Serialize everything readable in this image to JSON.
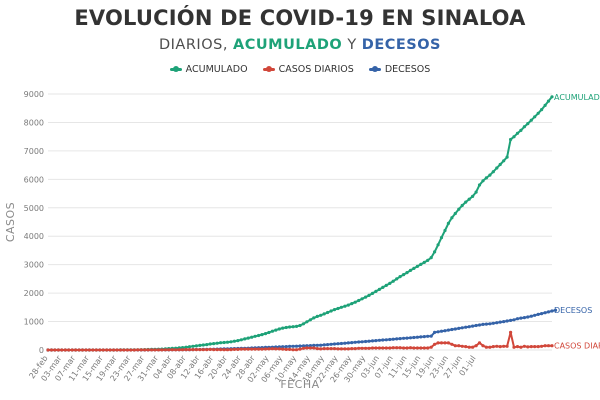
{
  "colors": {
    "acumulado": "#1ea278",
    "diarios": "#d1473a",
    "decesos": "#3563a8",
    "title": "#333333",
    "grid": "#e6e6e6"
  },
  "header": {
    "title": "EVOLUCIÓN DE COVID-19 EN SINALOA",
    "subtitle_prefix": "DIARIOS, ",
    "subtitle_acumulado": "ACUMULADO",
    "subtitle_join": " Y ",
    "subtitle_decesos": "DECESOS"
  },
  "legend": {
    "acumulado": "ACUMULADO",
    "diarios": "CASOS DIARIOS",
    "decesos": "DECESOS"
  },
  "chart_data": {
    "type": "line",
    "title": "EVOLUCIÓN DE COVID-19 EN SINALOA",
    "subtitle": "DIARIOS, ACUMULADO Y DECESOS",
    "xlabel": "FECHA",
    "ylabel": "CASOS",
    "ylim": [
      0,
      9000
    ],
    "yticks": [
      0,
      1000,
      2000,
      3000,
      4000,
      5000,
      6000,
      7000,
      8000,
      9000
    ],
    "grid": true,
    "legend_position": "top",
    "x_tick_labels": [
      "28-feb",
      "03-mar",
      "07-mar",
      "11-mar",
      "15-mar",
      "19-mar",
      "23-mar",
      "27-mar",
      "31-mar",
      "04-abr",
      "08-abr",
      "12-abr",
      "16-abr",
      "20-abr",
      "24-abr",
      "28-abr",
      "02-may",
      "06-may",
      "10-may",
      "14-may",
      "18-may",
      "22-may",
      "26-may",
      "30-may",
      "03-jun",
      "07-jun",
      "11-jun",
      "15-jun",
      "19-jun",
      "23-jun",
      "27-jun",
      "01-jul"
    ],
    "x_start": "28-feb",
    "x_end": "05-jul",
    "end_labels": {
      "acumulado": "ACUMULADO",
      "decesos": "DECESOS",
      "diarios": "CASOS DIARIOS"
    },
    "series": [
      {
        "name": "ACUMULADO",
        "values": [
          0,
          0,
          0,
          0,
          0,
          0,
          0,
          0,
          0,
          0,
          0,
          0,
          0,
          0,
          0,
          0,
          0,
          0,
          0,
          1,
          1,
          2,
          3,
          4,
          5,
          6,
          8,
          10,
          13,
          16,
          20,
          24,
          28,
          33,
          40,
          48,
          57,
          65,
          75,
          85,
          100,
          115,
          130,
          145,
          160,
          175,
          190,
          210,
          225,
          240,
          255,
          265,
          275,
          290,
          310,
          330,
          360,
          390,
          420,
          450,
          480,
          510,
          540,
          575,
          615,
          660,
          700,
          740,
          770,
          790,
          810,
          820,
          830,
          860,
          920,
          990,
          1060,
          1130,
          1180,
          1220,
          1270,
          1320,
          1370,
          1420,
          1460,
          1500,
          1540,
          1580,
          1630,
          1680,
          1740,
          1800,
          1860,
          1920,
          1990,
          2060,
          2130,
          2200,
          2270,
          2340,
          2420,
          2500,
          2580,
          2650,
          2720,
          2800,
          2870,
          2940,
          3010,
          3080,
          3150,
          3250,
          3450,
          3700,
          3950,
          4200,
          4450,
          4650,
          4800,
          4950,
          5080,
          5200,
          5300,
          5400,
          5550,
          5800,
          5950,
          6050,
          6150,
          6270,
          6400,
          6520,
          6650,
          6780,
          7400,
          7500,
          7620,
          7720,
          7850,
          7960,
          8080,
          8200,
          8320,
          8450,
          8600,
          8750,
          8900
        ],
        "end_value": 8900
      },
      {
        "name": "CASOS DIARIOS",
        "values": [
          0,
          0,
          0,
          0,
          0,
          0,
          0,
          0,
          0,
          0,
          0,
          0,
          0,
          0,
          0,
          0,
          0,
          0,
          0,
          1,
          0,
          1,
          1,
          1,
          1,
          1,
          2,
          2,
          3,
          3,
          4,
          4,
          4,
          5,
          7,
          8,
          9,
          8,
          10,
          10,
          15,
          15,
          15,
          15,
          15,
          15,
          15,
          20,
          15,
          15,
          15,
          10,
          10,
          15,
          20,
          20,
          30,
          30,
          30,
          30,
          30,
          30,
          30,
          35,
          40,
          45,
          40,
          40,
          30,
          20,
          20,
          10,
          10,
          30,
          60,
          70,
          70,
          70,
          50,
          40,
          50,
          50,
          50,
          50,
          40,
          40,
          40,
          40,
          50,
          50,
          60,
          60,
          60,
          60,
          70,
          70,
          70,
          70,
          70,
          70,
          80,
          80,
          80,
          70,
          70,
          80,
          70,
          70,
          70,
          70,
          70,
          100,
          200,
          250,
          250,
          250,
          250,
          200,
          150,
          150,
          130,
          120,
          100,
          100,
          150,
          250,
          150,
          100,
          100,
          120,
          130,
          120,
          130,
          130,
          620,
          100,
          120,
          100,
          130,
          110,
          120,
          120,
          120,
          130,
          150,
          150,
          150
        ],
        "end_value": 150
      },
      {
        "name": "DECESOS",
        "values": [
          0,
          0,
          0,
          0,
          0,
          0,
          0,
          0,
          0,
          0,
          0,
          0,
          0,
          0,
          0,
          0,
          0,
          0,
          0,
          0,
          0,
          0,
          0,
          0,
          0,
          0,
          0,
          0,
          1,
          1,
          2,
          2,
          3,
          3,
          4,
          5,
          6,
          7,
          8,
          9,
          10,
          12,
          14,
          16,
          18,
          20,
          22,
          25,
          28,
          31,
          34,
          37,
          40,
          44,
          48,
          52,
          56,
          60,
          65,
          70,
          75,
          80,
          85,
          90,
          95,
          100,
          105,
          110,
          115,
          120,
          125,
          130,
          135,
          140,
          145,
          150,
          155,
          160,
          165,
          170,
          180,
          190,
          200,
          210,
          220,
          230,
          240,
          250,
          260,
          270,
          280,
          290,
          300,
          310,
          320,
          330,
          340,
          350,
          360,
          370,
          380,
          390,
          400,
          410,
          420,
          430,
          440,
          450,
          460,
          470,
          480,
          490,
          620,
          640,
          660,
          680,
          700,
          720,
          740,
          760,
          780,
          800,
          820,
          840,
          860,
          880,
          900,
          910,
          920,
          940,
          960,
          980,
          1000,
          1020,
          1040,
          1060,
          1100,
          1120,
          1140,
          1160,
          1190,
          1220,
          1250,
          1280,
          1310,
          1340,
          1370,
          1400
        ],
        "end_value": 1400
      }
    ]
  }
}
